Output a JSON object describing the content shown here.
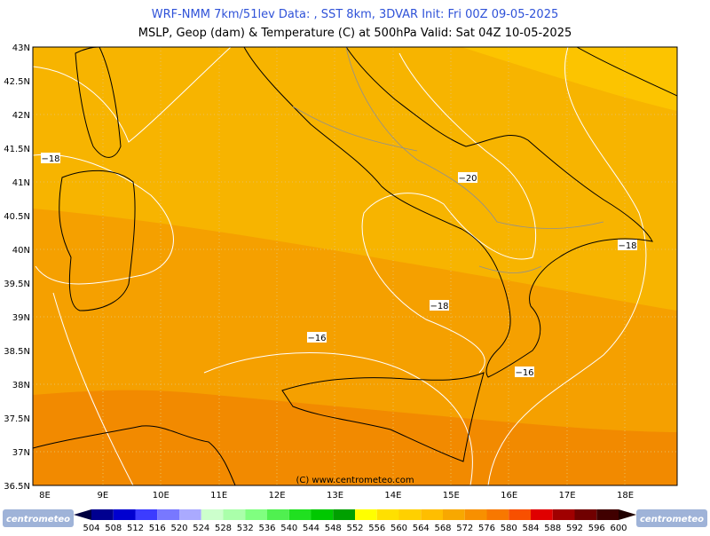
{
  "header": {
    "title_line1": "WRF-NMM 7km/51lev  Data: , SST 8km, 3DVAR  Init: Fri 00Z 09-05-2025",
    "title_line2": "MSLP, Geop (dam) & Temperature (C) at 500hPa  Valid: Sat 04Z 10-05-2025"
  },
  "map": {
    "lat_labels": [
      "43N",
      "42.5N",
      "42N",
      "41.5N",
      "41N",
      "40.5N",
      "40N",
      "39.5N",
      "39N",
      "38.5N",
      "38N",
      "37.5N",
      "37N",
      "36.5N"
    ],
    "lon_labels": [
      "8E",
      "9E",
      "10E",
      "11E",
      "12E",
      "13E",
      "14E",
      "15E",
      "16E",
      "17E",
      "18E"
    ],
    "contour_labels": [
      "−18",
      "−20",
      "−18",
      "−18",
      "−16",
      "−16"
    ],
    "credit": "(C) www.centrometeo.com"
  },
  "colorbar": {
    "labels": [
      504,
      508,
      512,
      516,
      520,
      524,
      528,
      532,
      536,
      540,
      544,
      548,
      552,
      556,
      560,
      564,
      568,
      572,
      576,
      580,
      584,
      588,
      592,
      596,
      600
    ],
    "colors": [
      "#000090",
      "#0000d0",
      "#3c3cff",
      "#7878ff",
      "#aaaaff",
      "#ccffcc",
      "#aaffaa",
      "#80ff80",
      "#50f050",
      "#20e020",
      "#00c800",
      "#00a000",
      "#ffff00",
      "#ffe000",
      "#ffd000",
      "#ffbe00",
      "#f8a800",
      "#f89000",
      "#f87800",
      "#f85000",
      "#e00000",
      "#a00000",
      "#700000",
      "#400000"
    ],
    "logo_left": "centrometeo",
    "logo_right": "centrometeo"
  }
}
